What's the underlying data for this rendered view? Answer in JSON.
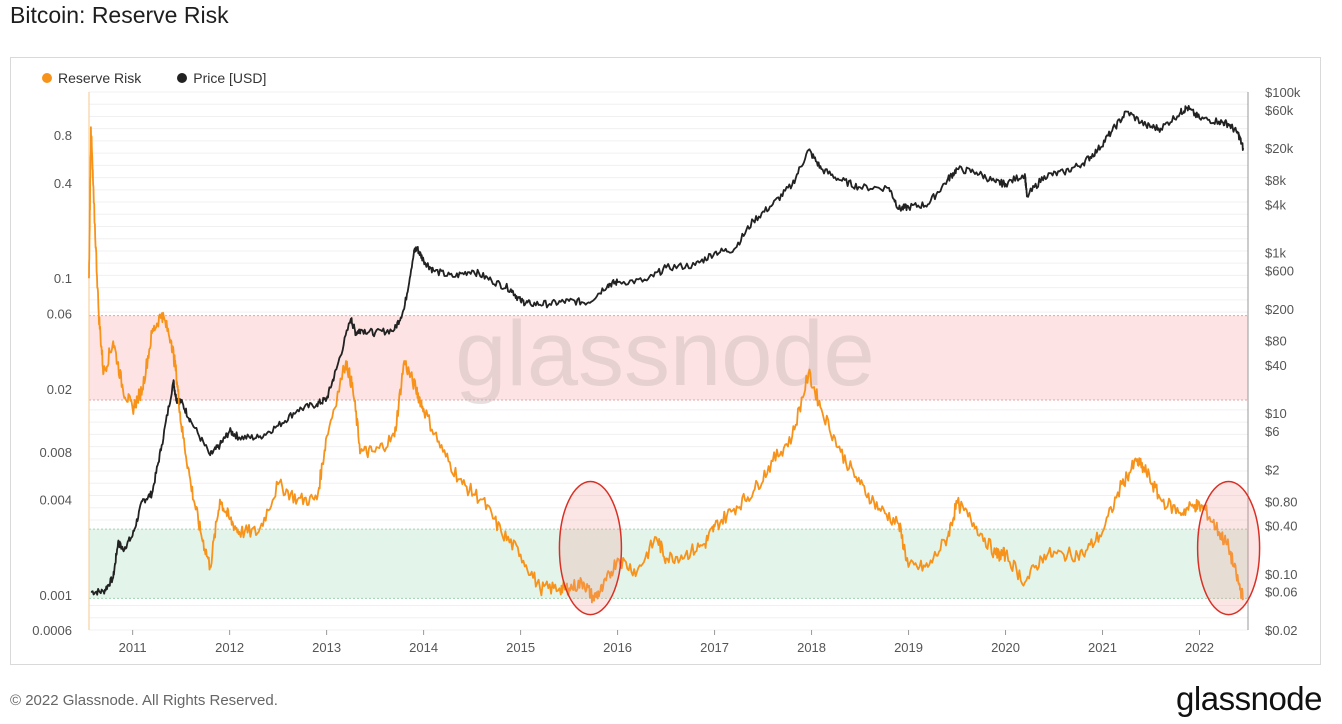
{
  "page": {
    "title": "Bitcoin: Reserve Risk",
    "copyright": "© 2022 Glassnode. All Rights Reserved.",
    "logo": "glassnode",
    "watermark": "glassnode"
  },
  "chart_data": {
    "type": "line",
    "title": "Bitcoin: Reserve Risk",
    "legend_position": "top-left",
    "grid": true,
    "x_ticks": [
      "2011",
      "2012",
      "2013",
      "2014",
      "2015",
      "2016",
      "2017",
      "2018",
      "2019",
      "2020",
      "2021",
      "2022"
    ],
    "x_range": [
      2010.55,
      2022.5
    ],
    "y_left": {
      "scale": "log",
      "range": [
        0.0006,
        1.5
      ],
      "ticks": [
        0.8,
        0.4,
        0.1,
        0.06,
        0.02,
        0.008,
        0.004,
        0.001,
        0.0006
      ],
      "tick_labels": [
        "0.8",
        "0.4",
        "0.1",
        "0.06",
        "0.02",
        "0.008",
        "0.004",
        "0.001",
        "0.0006"
      ]
    },
    "y_right": {
      "scale": "log",
      "range": [
        0.02,
        100000
      ],
      "ticks": [
        100000,
        60000,
        20000,
        8000,
        4000,
        1000,
        600,
        200,
        80,
        40,
        10,
        6,
        2,
        0.8,
        0.4,
        0.1,
        0.06,
        0.02
      ],
      "tick_labels": [
        "$100k",
        "$60k",
        "$20k",
        "$8k",
        "$4k",
        "$1k",
        "$600",
        "$200",
        "$80",
        "$40",
        "$10",
        "$6",
        "$2",
        "$0.80",
        "$0.40",
        "$0.10",
        "$0.06",
        "$0.02"
      ]
    },
    "bands": [
      {
        "name": "high",
        "from": 0.017,
        "to": 0.058,
        "color": "#fde3e3"
      },
      {
        "name": "low",
        "from": 0.00095,
        "to": 0.0026,
        "color": "#e3f5ea"
      }
    ],
    "highlights": [
      {
        "x": 2015.72,
        "y_low": 0.00075,
        "y_high": 0.0052
      },
      {
        "x": 2022.3,
        "y_low": 0.00075,
        "y_high": 0.0052
      }
    ],
    "series": [
      {
        "name": "Reserve Risk",
        "axis": "left",
        "color": "#f7931a",
        "x": [
          2010.55,
          2010.57,
          2010.6,
          2010.65,
          2010.7,
          2010.8,
          2010.9,
          2011.0,
          2011.1,
          2011.2,
          2011.3,
          2011.4,
          2011.45,
          2011.5,
          2011.6,
          2011.7,
          2011.8,
          2011.9,
          2012.0,
          2012.1,
          2012.3,
          2012.5,
          2012.7,
          2012.9,
          2013.0,
          2013.2,
          2013.27,
          2013.35,
          2013.5,
          2013.7,
          2013.8,
          2013.92,
          2014.0,
          2014.2,
          2014.4,
          2014.6,
          2014.8,
          2015.0,
          2015.2,
          2015.4,
          2015.5,
          2015.65,
          2015.75,
          2015.85,
          2016.0,
          2016.2,
          2016.4,
          2016.5,
          2016.7,
          2016.9,
          2017.0,
          2017.2,
          2017.4,
          2017.6,
          2017.8,
          2017.97,
          2018.1,
          2018.3,
          2018.5,
          2018.7,
          2018.9,
          2019.0,
          2019.2,
          2019.4,
          2019.5,
          2019.7,
          2019.9,
          2020.0,
          2020.2,
          2020.4,
          2020.6,
          2020.8,
          2021.0,
          2021.2,
          2021.35,
          2021.45,
          2021.6,
          2021.8,
          2021.95,
          2022.05,
          2022.2,
          2022.3,
          2022.4,
          2022.45
        ],
        "values": [
          0.1,
          0.9,
          0.3,
          0.06,
          0.025,
          0.04,
          0.02,
          0.015,
          0.02,
          0.045,
          0.06,
          0.04,
          0.025,
          0.012,
          0.005,
          0.0025,
          0.0015,
          0.004,
          0.003,
          0.0025,
          0.0025,
          0.005,
          0.004,
          0.004,
          0.01,
          0.03,
          0.02,
          0.008,
          0.008,
          0.01,
          0.03,
          0.02,
          0.015,
          0.008,
          0.005,
          0.004,
          0.0025,
          0.0018,
          0.0011,
          0.0011,
          0.0011,
          0.0012,
          0.00095,
          0.0011,
          0.0017,
          0.0014,
          0.0023,
          0.0017,
          0.0018,
          0.0021,
          0.0027,
          0.0035,
          0.0045,
          0.007,
          0.01,
          0.025,
          0.015,
          0.008,
          0.005,
          0.0035,
          0.0028,
          0.0015,
          0.0015,
          0.0023,
          0.0038,
          0.0027,
          0.0018,
          0.0018,
          0.0012,
          0.0018,
          0.0018,
          0.0018,
          0.0025,
          0.005,
          0.007,
          0.006,
          0.004,
          0.0033,
          0.0037,
          0.0035,
          0.0025,
          0.002,
          0.0012,
          0.00095
        ]
      },
      {
        "name": "Price [USD]",
        "axis": "right",
        "color": "#222222",
        "x": [
          2010.57,
          2010.7,
          2010.8,
          2010.85,
          2010.9,
          2011.0,
          2011.1,
          2011.2,
          2011.3,
          2011.42,
          2011.45,
          2011.5,
          2011.6,
          2011.8,
          2011.9,
          2012.0,
          2012.1,
          2012.3,
          2012.5,
          2012.7,
          2012.9,
          2013.0,
          2013.1,
          2013.25,
          2013.3,
          2013.35,
          2013.5,
          2013.7,
          2013.8,
          2013.9,
          2013.93,
          2014.0,
          2014.1,
          2014.3,
          2014.5,
          2014.7,
          2014.9,
          2015.0,
          2015.1,
          2015.3,
          2015.5,
          2015.7,
          2015.9,
          2016.0,
          2016.3,
          2016.5,
          2016.8,
          2017.0,
          2017.2,
          2017.4,
          2017.6,
          2017.8,
          2017.97,
          2018.1,
          2018.3,
          2018.5,
          2018.8,
          2018.9,
          2019.0,
          2019.2,
          2019.4,
          2019.5,
          2019.7,
          2019.9,
          2020.0,
          2020.2,
          2020.22,
          2020.4,
          2020.6,
          2020.8,
          2020.95,
          2021.1,
          2021.25,
          2021.45,
          2021.6,
          2021.8,
          2021.87,
          2022.0,
          2022.2,
          2022.3,
          2022.4,
          2022.45
        ],
        "values": [
          0.06,
          0.06,
          0.09,
          0.25,
          0.2,
          0.3,
          0.8,
          1.0,
          4,
          25,
          15,
          14,
          8,
          3,
          4,
          6,
          5,
          5,
          7,
          11,
          13,
          15,
          35,
          150,
          100,
          110,
          100,
          110,
          200,
          1000,
          1150,
          800,
          600,
          500,
          600,
          450,
          350,
          250,
          230,
          230,
          250,
          240,
          400,
          430,
          450,
          650,
          700,
          1000,
          1100,
          2500,
          4000,
          7000,
          19000,
          11000,
          8000,
          6500,
          6400,
          3500,
          3700,
          4000,
          8000,
          11000,
          10000,
          7500,
          7200,
          9500,
          5000,
          9000,
          10000,
          13000,
          19000,
          33000,
          57000,
          38000,
          35000,
          55000,
          64000,
          47000,
          43000,
          40000,
          30000,
          20000
        ]
      }
    ]
  }
}
